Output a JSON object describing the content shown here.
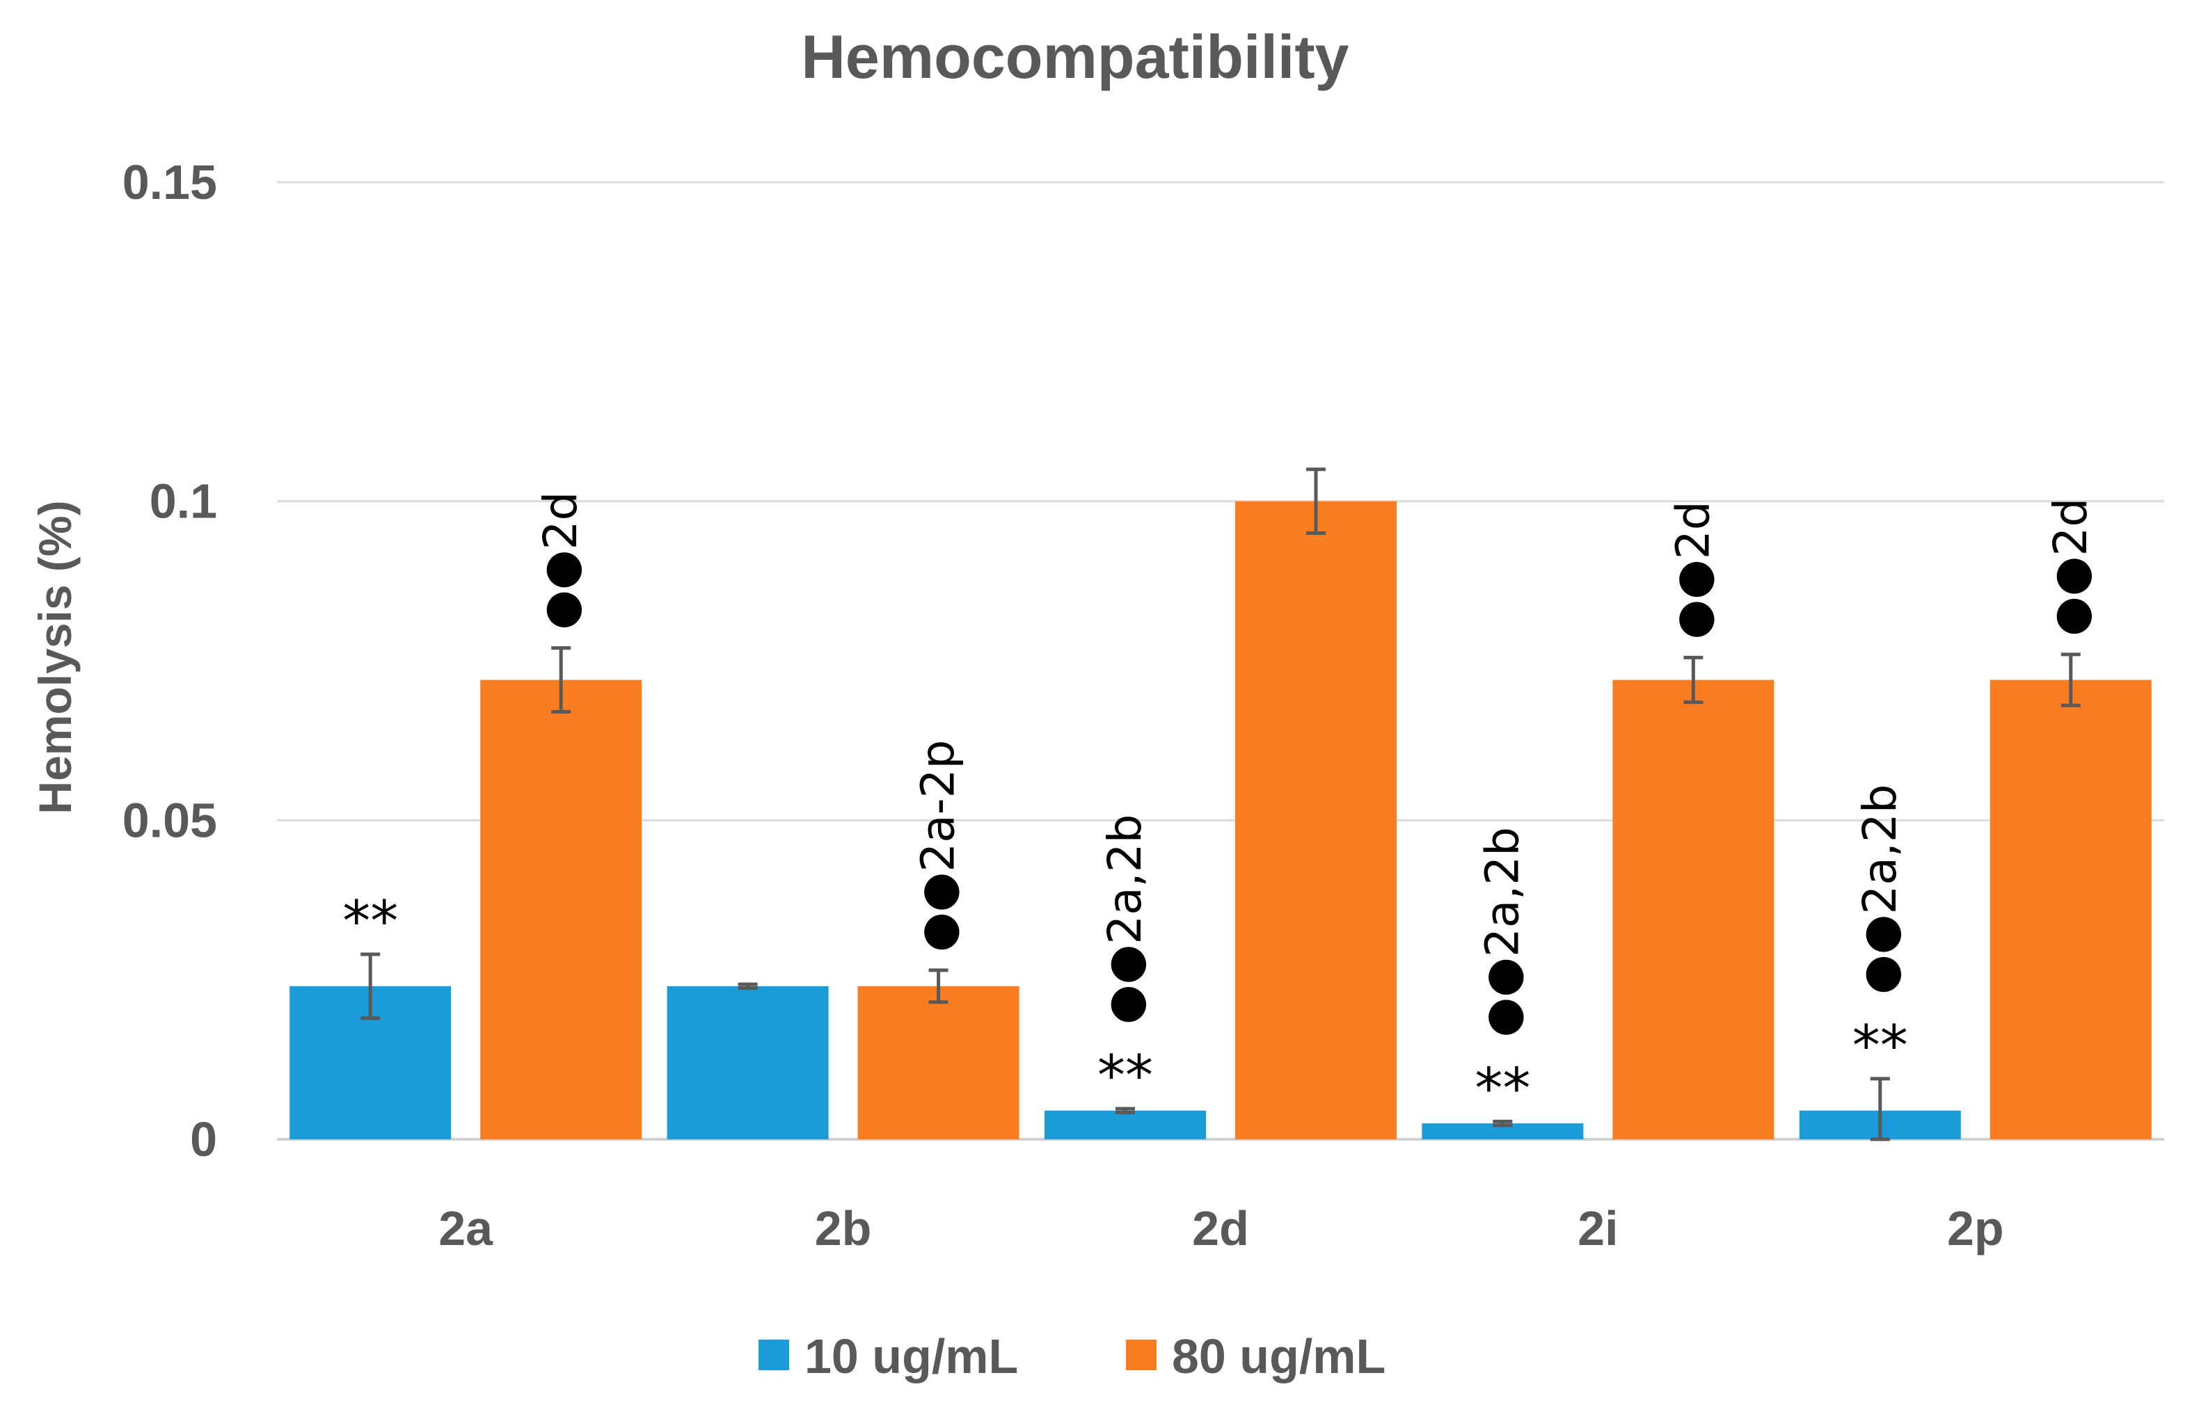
{
  "chart_data": {
    "type": "bar",
    "title": "Hemocompatibility",
    "xlabel": "",
    "ylabel": "Hemolysis (%)",
    "ylim": [
      0,
      0.15
    ],
    "yticks": [
      0,
      0.05,
      0.1,
      0.15
    ],
    "ytick_labels": [
      "0",
      "0.05",
      "0.1",
      "0.15"
    ],
    "grid": true,
    "legend_position": "bottom-center",
    "categories": [
      "2a",
      "2b",
      "2d",
      "2i",
      "2p"
    ],
    "series": [
      {
        "name": "10 ug/mL",
        "color": "#1b9bd7",
        "values": [
          0.024,
          0.024,
          0.0045,
          0.0025,
          0.0045
        ],
        "errors": [
          0.005,
          0.0003,
          0.0003,
          0.0003,
          0.005
        ],
        "annotations": [
          {
            "star": "**",
            "label": ""
          },
          {
            "star": "",
            "label": ""
          },
          {
            "star": "**",
            "label": "●●2a,2b"
          },
          {
            "star": "**",
            "label": "●●2a,2b"
          },
          {
            "star": "**",
            "label": "●●2a,2b"
          }
        ]
      },
      {
        "name": "80 ug/mL",
        "color": "#fb7d22",
        "values": [
          0.072,
          0.024,
          0.1,
          0.072,
          0.072
        ],
        "errors": [
          0.005,
          0.0025,
          0.005,
          0.0035,
          0.004
        ],
        "annotations": [
          {
            "star": "",
            "label": "●●2d"
          },
          {
            "star": "",
            "label": "●●2a-2p"
          },
          {
            "star": "",
            "label": ""
          },
          {
            "star": "",
            "label": "●●2d"
          },
          {
            "star": "",
            "label": "●●2d"
          }
        ]
      }
    ]
  }
}
